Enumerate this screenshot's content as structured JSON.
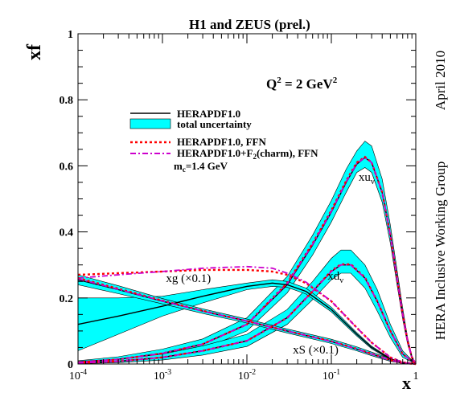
{
  "chart_data": {
    "type": "line",
    "title": "H1 and ZEUS (prel.)",
    "xlabel": "x",
    "ylabel": "xf",
    "xscale": "log",
    "xlim": [
      0.0001,
      1
    ],
    "ylim": [
      0,
      1
    ],
    "grid": false,
    "legend_placement": "upper-left",
    "annotation_q2": {
      "prefix": "Q",
      "sup1": "2",
      "mid": " = 2 GeV",
      "sup2": "2"
    },
    "side_label_date": "April 2010",
    "side_label_group": "HERA Inclusive Working Group",
    "x_ticks": [
      {
        "value": 0.0001,
        "base": "10",
        "exp": "-4"
      },
      {
        "value": 0.001,
        "base": "10",
        "exp": "-3"
      },
      {
        "value": 0.01,
        "base": "10",
        "exp": "-2"
      },
      {
        "value": 0.1,
        "base": "10",
        "exp": "-1"
      },
      {
        "value": 1,
        "base": "1",
        "exp": ""
      }
    ],
    "y_ticks": [
      {
        "value": 0,
        "label": "0"
      },
      {
        "value": 0.2,
        "label": "0.2"
      },
      {
        "value": 0.4,
        "label": "0.4"
      },
      {
        "value": 0.6,
        "label": "0.6"
      },
      {
        "value": 0.8,
        "label": "0.8"
      },
      {
        "value": 1,
        "label": "1"
      }
    ],
    "colors": {
      "band": "#00ffff",
      "central": "#000000",
      "ffn": "#ff0000",
      "charm": "#cc00cc"
    },
    "legend": {
      "central": "HERAPDF1.0",
      "band": "total uncertainty",
      "ffn": "HERAPDF1.0, FFN",
      "charm_prefix": "HERAPDF1.0+F",
      "charm_sub": "2",
      "charm_suffix": "(charm), FFN",
      "mc_prefix": "m",
      "mc_sub": "c",
      "mc_suffix": "=1.4 GeV"
    },
    "curve_labels": [
      {
        "key": "xuv",
        "base": "xu",
        "sub": "v",
        "x": 0.21,
        "y": 0.555
      },
      {
        "key": "xdv",
        "base": "xd",
        "sub": "v",
        "x": 0.09,
        "y": 0.255
      },
      {
        "key": "xg",
        "base": "xg (×0.1)",
        "sub": "",
        "x": 0.0011,
        "y": 0.248
      },
      {
        "key": "xS",
        "base": "xS (×0.1)",
        "sub": "",
        "x": 0.035,
        "y": 0.032
      }
    ],
    "series": [
      {
        "key": "xuv",
        "x": [
          0.0001,
          0.0003,
          0.001,
          0.003,
          0.01,
          0.03,
          0.06,
          0.1,
          0.15,
          0.2,
          0.25,
          0.3,
          0.4,
          0.5,
          0.6,
          0.7,
          0.8,
          0.9,
          1
        ],
        "central": [
          0.005,
          0.014,
          0.032,
          0.06,
          0.12,
          0.24,
          0.36,
          0.46,
          0.55,
          0.605,
          0.625,
          0.61,
          0.52,
          0.39,
          0.26,
          0.15,
          0.07,
          0.02,
          0
        ],
        "low": [
          0.003,
          0.009,
          0.023,
          0.046,
          0.1,
          0.215,
          0.33,
          0.43,
          0.52,
          0.58,
          0.595,
          0.58,
          0.49,
          0.365,
          0.24,
          0.135,
          0.06,
          0.015,
          0
        ],
        "high": [
          0.01,
          0.022,
          0.045,
          0.076,
          0.14,
          0.265,
          0.39,
          0.495,
          0.59,
          0.645,
          0.675,
          0.66,
          0.56,
          0.42,
          0.285,
          0.17,
          0.08,
          0.025,
          0
        ],
        "ffn": [
          0.005,
          0.014,
          0.032,
          0.06,
          0.12,
          0.245,
          0.365,
          0.465,
          0.555,
          0.61,
          0.627,
          0.61,
          0.52,
          0.39,
          0.26,
          0.15,
          0.07,
          0.02,
          0
        ],
        "charm": [
          0.005,
          0.014,
          0.032,
          0.06,
          0.12,
          0.243,
          0.362,
          0.462,
          0.552,
          0.607,
          0.625,
          0.61,
          0.52,
          0.39,
          0.26,
          0.15,
          0.07,
          0.02,
          0
        ]
      },
      {
        "key": "xdv",
        "x": [
          0.0001,
          0.0003,
          0.001,
          0.003,
          0.01,
          0.03,
          0.06,
          0.1,
          0.13,
          0.17,
          0.25,
          0.35,
          0.5,
          0.7,
          1
        ],
        "central": [
          0.003,
          0.008,
          0.02,
          0.04,
          0.07,
          0.14,
          0.22,
          0.28,
          0.3,
          0.3,
          0.26,
          0.19,
          0.1,
          0.03,
          0
        ],
        "low": [
          0.001,
          0.004,
          0.012,
          0.027,
          0.053,
          0.12,
          0.195,
          0.255,
          0.275,
          0.275,
          0.23,
          0.16,
          0.08,
          0.02,
          0
        ],
        "high": [
          0.008,
          0.015,
          0.03,
          0.055,
          0.09,
          0.165,
          0.25,
          0.32,
          0.345,
          0.345,
          0.3,
          0.225,
          0.12,
          0.04,
          0
        ],
        "ffn": [
          0.003,
          0.008,
          0.02,
          0.04,
          0.07,
          0.14,
          0.22,
          0.282,
          0.302,
          0.302,
          0.262,
          0.19,
          0.1,
          0.03,
          0
        ],
        "charm": [
          0.003,
          0.008,
          0.02,
          0.04,
          0.07,
          0.14,
          0.22,
          0.28,
          0.3,
          0.3,
          0.26,
          0.19,
          0.1,
          0.03,
          0
        ]
      },
      {
        "key": "xg",
        "x": [
          0.0001,
          0.0003,
          0.001,
          0.003,
          0.01,
          0.02,
          0.03,
          0.05,
          0.1,
          0.2,
          0.3,
          0.5,
          0.7,
          1
        ],
        "central": [
          0.12,
          0.145,
          0.175,
          0.205,
          0.235,
          0.245,
          0.24,
          0.22,
          0.165,
          0.09,
          0.05,
          0.015,
          0.003,
          0
        ],
        "low": [
          0.04,
          0.09,
          0.145,
          0.185,
          0.225,
          0.235,
          0.232,
          0.212,
          0.158,
          0.085,
          0.046,
          0.013,
          0.002,
          0
        ],
        "high": [
          0.2,
          0.2,
          0.205,
          0.225,
          0.245,
          0.255,
          0.25,
          0.23,
          0.172,
          0.095,
          0.054,
          0.017,
          0.004,
          0
        ],
        "ffn": [
          0.27,
          0.275,
          0.28,
          0.285,
          0.285,
          0.28,
          0.27,
          0.245,
          0.19,
          0.11,
          0.065,
          0.02,
          0.005,
          0
        ],
        "charm": [
          0.26,
          0.27,
          0.28,
          0.29,
          0.295,
          0.29,
          0.275,
          0.248,
          0.19,
          0.11,
          0.065,
          0.02,
          0.005,
          0
        ]
      },
      {
        "key": "xS",
        "x": [
          0.0001,
          0.0003,
          0.001,
          0.003,
          0.01,
          0.03,
          0.1,
          0.2,
          0.3,
          0.5,
          0.7,
          1
        ],
        "central": [
          0.255,
          0.225,
          0.19,
          0.16,
          0.13,
          0.1,
          0.068,
          0.045,
          0.03,
          0.012,
          0.003,
          0
        ],
        "low": [
          0.24,
          0.213,
          0.182,
          0.153,
          0.124,
          0.094,
          0.062,
          0.04,
          0.025,
          0.008,
          0.002,
          0
        ],
        "high": [
          0.27,
          0.237,
          0.198,
          0.167,
          0.136,
          0.106,
          0.075,
          0.052,
          0.036,
          0.016,
          0.005,
          0
        ],
        "ffn": [
          0.26,
          0.228,
          0.192,
          0.161,
          0.13,
          0.1,
          0.069,
          0.046,
          0.031,
          0.012,
          0.003,
          0
        ],
        "charm": [
          0.258,
          0.226,
          0.191,
          0.16,
          0.13,
          0.1,
          0.068,
          0.045,
          0.03,
          0.012,
          0.003,
          0
        ]
      }
    ]
  }
}
